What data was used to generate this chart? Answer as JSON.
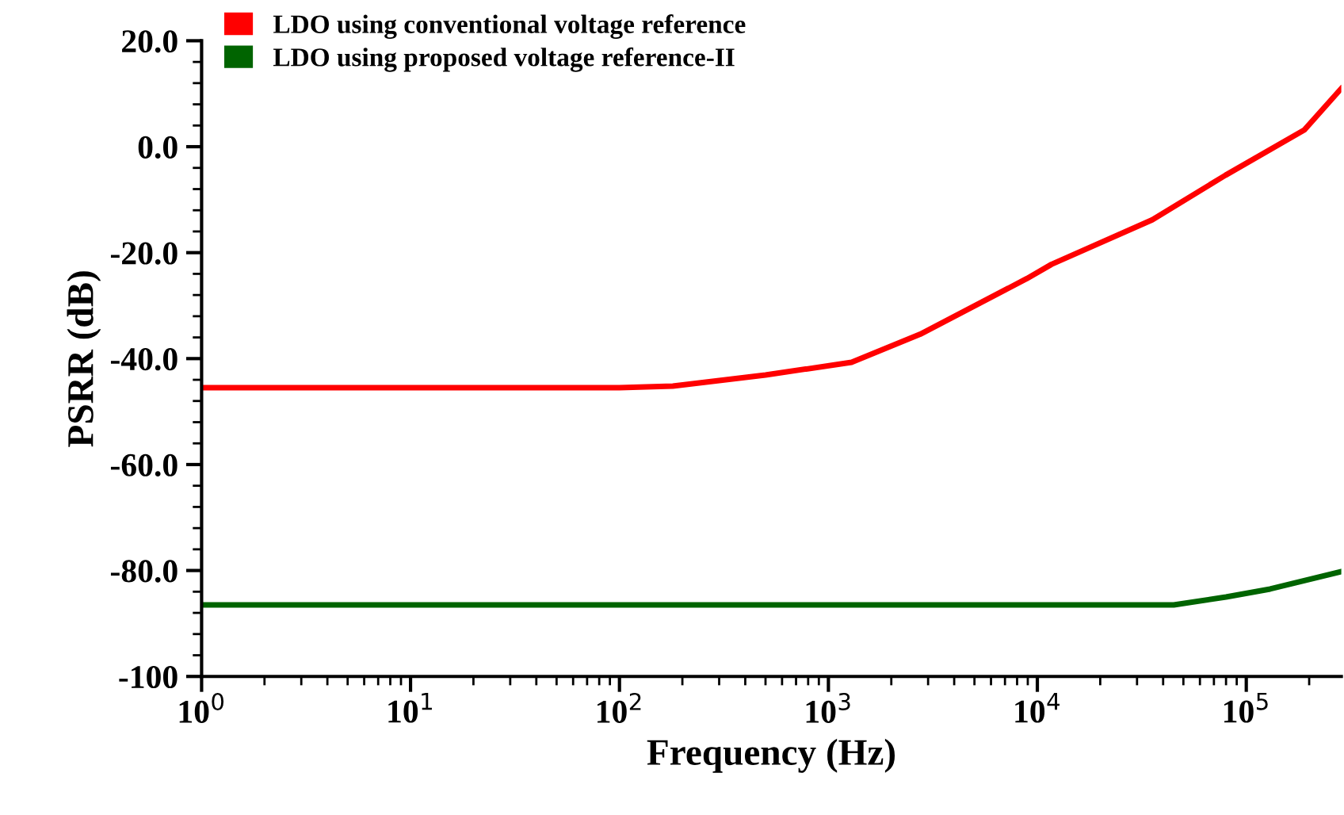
{
  "chart_data": {
    "type": "line",
    "xlabel": "Frequency (Hz)",
    "ylabel": "PSRR (dB)",
    "log": "x",
    "legend": "top left",
    "grid": false,
    "series": [
      {
        "name": "LDO using conventional voltage reference",
        "color": "#ff0000",
        "x": [
          1,
          10,
          100,
          180,
          500,
          1290,
          2750,
          8900,
          11700,
          35500,
          79400,
          190000,
          285000
        ],
        "values": [
          -45.5,
          -45.5,
          -45.5,
          -45.2,
          -43.1,
          -40.7,
          -35.4,
          -24.9,
          -22.2,
          -13.8,
          -5.4,
          3.2,
          11
        ]
      },
      {
        "name": "LDO using proposed voltage reference-II",
        "color": "#006400",
        "x": [
          1,
          10,
          100,
          1000,
          10000,
          45000,
          80000,
          130000,
          285000
        ],
        "values": [
          -86.5,
          -86.5,
          -86.5,
          -86.5,
          -86.5,
          -86.5,
          -85,
          -83.5,
          -80.2
        ]
      }
    ],
    "xlim": [
      1,
      285000
    ],
    "xticks": [
      {
        "value": 1,
        "label": "10$^{0}$"
      },
      {
        "value": 10,
        "label": "10$^{1}$"
      },
      {
        "value": 100,
        "label": "10$^{2}$"
      },
      {
        "value": 1000,
        "label": "10$^{3}$"
      },
      {
        "value": 10000,
        "label": "10$^{4}$"
      },
      {
        "value": 100000,
        "label": "10$^{5}$"
      }
    ],
    "ylim": [
      -100,
      20
    ],
    "yticks": [
      {
        "value": 20,
        "label": "20.0"
      },
      {
        "value": 0,
        "label": "0.0"
      },
      {
        "value": -20,
        "label": "-20.0"
      },
      {
        "value": -40,
        "label": "-40.0"
      },
      {
        "value": -60,
        "label": "-60.0"
      },
      {
        "value": -80,
        "label": "-80.0"
      },
      {
        "value": -100,
        "label": "-100"
      }
    ]
  }
}
